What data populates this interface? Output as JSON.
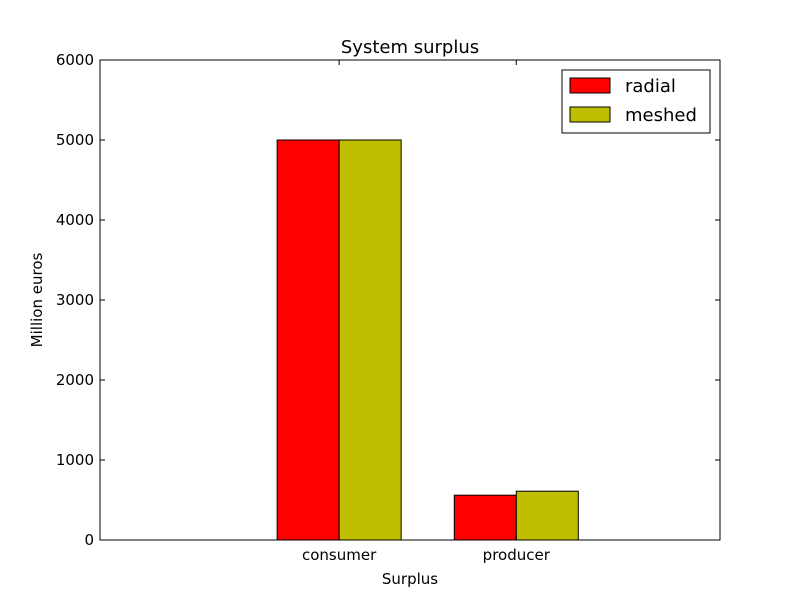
{
  "chart_data": {
    "type": "bar",
    "title": "System surplus",
    "xlabel": "Surplus",
    "ylabel": "Million euros",
    "categories": [
      "consumer",
      "producer"
    ],
    "series": [
      {
        "name": "radial",
        "color": "#ff0000",
        "values": [
          5000,
          560
        ]
      },
      {
        "name": "meshed",
        "color": "#bfbf00",
        "values": [
          5000,
          610
        ]
      }
    ],
    "ylim": [
      0,
      6000
    ],
    "yticks": [
      0,
      1000,
      2000,
      3000,
      4000,
      5000,
      6000
    ],
    "ytick_labels": [
      "0",
      "1000",
      "2000",
      "3000",
      "4000",
      "5000",
      "6000"
    ],
    "grid": false,
    "legend_position": "top-right"
  }
}
